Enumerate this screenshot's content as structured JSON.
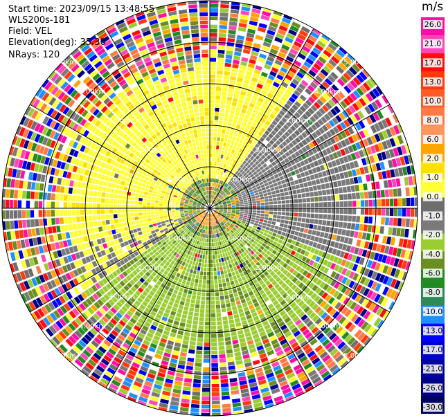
{
  "info": {
    "start_time_label": "Start time:",
    "start_time": "2023/09/15 13:48:55",
    "instrument": "WLS200s-181",
    "field_label": "Field:",
    "field": "VEL",
    "elevation_label": "Elevation(deg):",
    "elevation": "35.30",
    "nrays_label": "NRays:",
    "nrays": "120"
  },
  "chart_data": {
    "type": "heatmap",
    "projection": "polar-ppi",
    "title": "",
    "range_rings_km": [
      "1.00km",
      "2.00km",
      "3.00km",
      "4.00km",
      "5.00km"
    ],
    "spokes_deg": [
      0,
      30,
      60,
      90,
      120,
      150,
      180,
      210,
      240,
      270,
      300,
      330
    ],
    "colorbar": {
      "unit": "m/s",
      "ticks": [
        "26.0",
        "21.0",
        "17.0",
        "13.0",
        "10.0",
        "8.0",
        "6.0",
        "2.0",
        "1.0",
        "0.0",
        "-1.0",
        "-2.0",
        "-4.0",
        "-6.0",
        "-8.0",
        "-10.0",
        "-13.0",
        "-17.0",
        "-21.0",
        "-26.0",
        "-30.0"
      ],
      "colors": [
        "#ff0ea6",
        "#ff45b8",
        "#ff0d0d",
        "#ff3a0b",
        "#ff5a28",
        "#ff7a44",
        "#ff965e",
        "#ffa500",
        "#ffe000",
        "#ffff33",
        "#6e6e6e",
        "#7a7a7a",
        "#9acd32",
        "#6b8e23",
        "#228b22",
        "#2e8b57",
        "#1e90ff",
        "#0000ff",
        "#0000cd",
        "#0000a0",
        "#00008b",
        "#000060"
      ]
    },
    "velocity_field": {
      "inner_pattern": "yellow (positive) toward top-left, gray near-zero toward right, green (negative) toward bottom",
      "outer_noise_beyond_km": 3.5
    }
  }
}
